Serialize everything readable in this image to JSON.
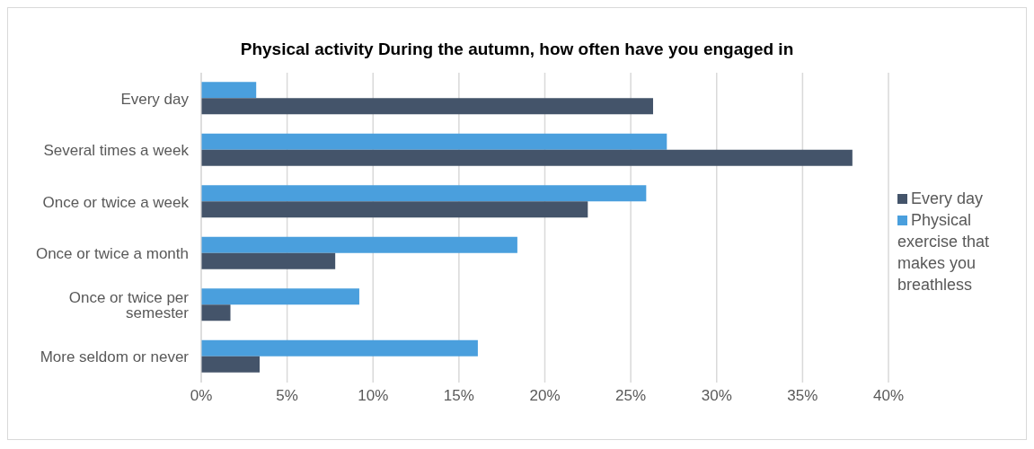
{
  "chart_data": {
    "type": "bar",
    "orientation": "horizontal",
    "title": "Physical activity During the autumn, how often have you engaged in",
    "categories": [
      "Every day",
      "Several times a week",
      "Once or twice a week",
      "Once or twice a month",
      "Once or twice per semester",
      "More seldom or never"
    ],
    "series": [
      {
        "name": "Physical exercise that makes you breathless",
        "color": "#4a9fdd",
        "values": [
          3.2,
          27.1,
          25.9,
          18.4,
          9.2,
          16.1
        ]
      },
      {
        "name": "Every day",
        "color": "#44546a",
        "values": [
          26.3,
          37.9,
          22.5,
          7.8,
          1.7,
          3.4
        ]
      }
    ],
    "xlim": [
      0,
      40
    ],
    "xticks": [
      {
        "value": 0,
        "label": "0%"
      },
      {
        "value": 5,
        "label": "5%"
      },
      {
        "value": 10,
        "label": "10%"
      },
      {
        "value": 15,
        "label": "15%"
      },
      {
        "value": 20,
        "label": "20%"
      },
      {
        "value": 25,
        "label": "25%"
      },
      {
        "value": 30,
        "label": "30%"
      },
      {
        "value": 35,
        "label": "35%"
      },
      {
        "value": 40,
        "label": "40%"
      }
    ],
    "grid": "x",
    "legend": "right"
  }
}
